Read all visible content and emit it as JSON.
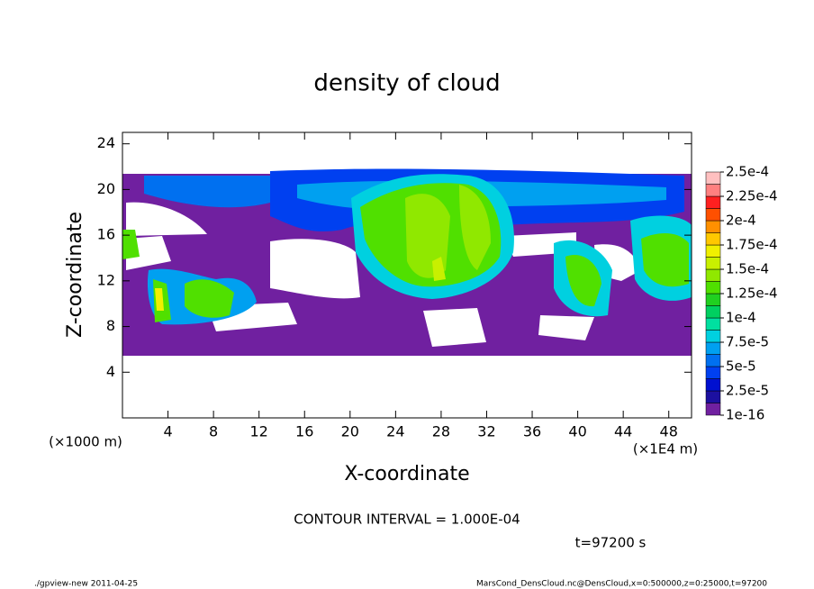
{
  "chart_data": {
    "type": "contour",
    "title": "density of cloud",
    "x_label": "X-coordinate",
    "y_label": "Z-coordinate",
    "x_unit": "(×1E4 m)",
    "y_unit": "(×1000 m)",
    "xlim": [
      0,
      50
    ],
    "ylim": [
      0,
      25
    ],
    "xticks": [
      4,
      8,
      12,
      16,
      20,
      24,
      28,
      32,
      36,
      40,
      44,
      48
    ],
    "yticks": [
      4,
      8,
      12,
      16,
      20,
      24
    ],
    "colorbar_ticks": [
      {
        "value": 1e-16,
        "label": "1e-16"
      },
      {
        "value": 2.5e-05,
        "label": "2.5e-5"
      },
      {
        "value": 5e-05,
        "label": "5e-5"
      },
      {
        "value": 7.5e-05,
        "label": "7.5e-5"
      },
      {
        "value": 0.0001,
        "label": "1e-4"
      },
      {
        "value": 0.000125,
        "label": "1.25e-4"
      },
      {
        "value": 0.00015,
        "label": "1.5e-4"
      },
      {
        "value": 0.000175,
        "label": "1.75e-4"
      },
      {
        "value": 0.0002,
        "label": "2e-4"
      },
      {
        "value": 0.000225,
        "label": "2.25e-4"
      },
      {
        "value": 0.00025,
        "label": "2.5e-4"
      }
    ],
    "colorbar_colors": [
      "#7020a0",
      "#1c10a0",
      "#0010d0",
      "#0040f0",
      "#0070f0",
      "#00a0f0",
      "#00d0e0",
      "#00e0a0",
      "#00d060",
      "#20d020",
      "#50e000",
      "#90e800",
      "#c8f000",
      "#f0f000",
      "#ffc800",
      "#ff9000",
      "#ff5000",
      "#ff2020",
      "#ff8080",
      "#ffc0c0"
    ],
    "contour_interval": "CONTOUR INTERVAL = 1.000E-04",
    "time_label": "t=97200 s",
    "footer_left": "./gpview-new  2011-04-25",
    "footer_right": "MarsCond_DensCloud.nc@DensCloud,x=0:500000,z=0:25000,t=97200"
  }
}
